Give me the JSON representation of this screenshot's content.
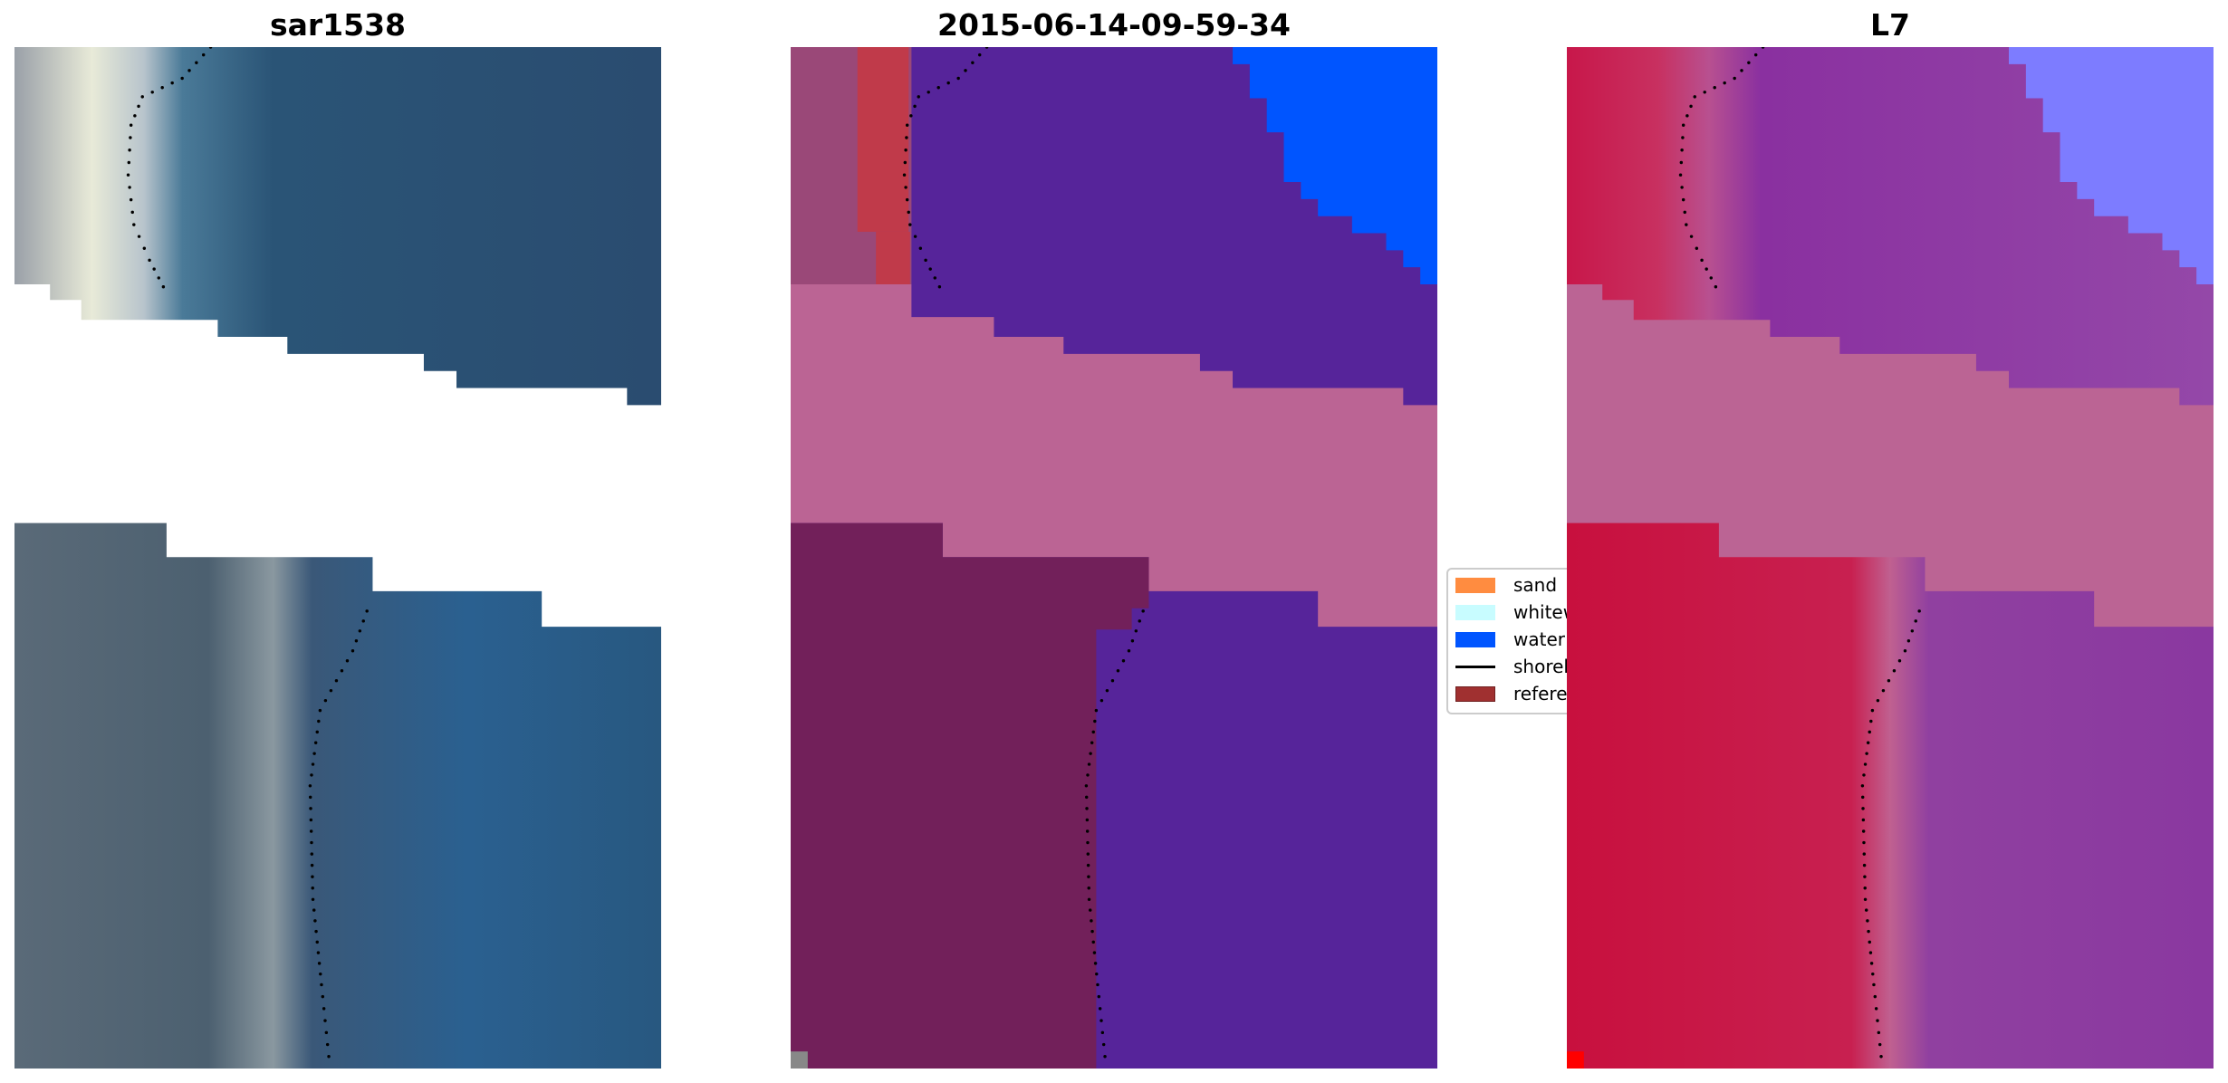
{
  "panels": [
    {
      "title": "sar1538"
    },
    {
      "title": "2015-06-14-09-59-34"
    },
    {
      "title": "L7"
    }
  ],
  "legend": {
    "items": [
      {
        "label": "sand",
        "color": "#ff8c40",
        "kind": "patch"
      },
      {
        "label": "whitew",
        "color": "#c8fcff",
        "kind": "patch"
      },
      {
        "label": "water",
        "color": "#0055ff",
        "kind": "patch"
      },
      {
        "label": "shoreli",
        "color": "#000000",
        "kind": "line"
      },
      {
        "label": "referen",
        "color": "#a03030",
        "kind": "patch"
      }
    ]
  },
  "colors": {
    "nodata": "#ffffff",
    "classified_other": "#56249a",
    "classified_band": "#bb6494",
    "l7_red": "#c8174a",
    "l7_purple": "#8a3a9c",
    "l7_lightblue": "#7d7cff"
  }
}
